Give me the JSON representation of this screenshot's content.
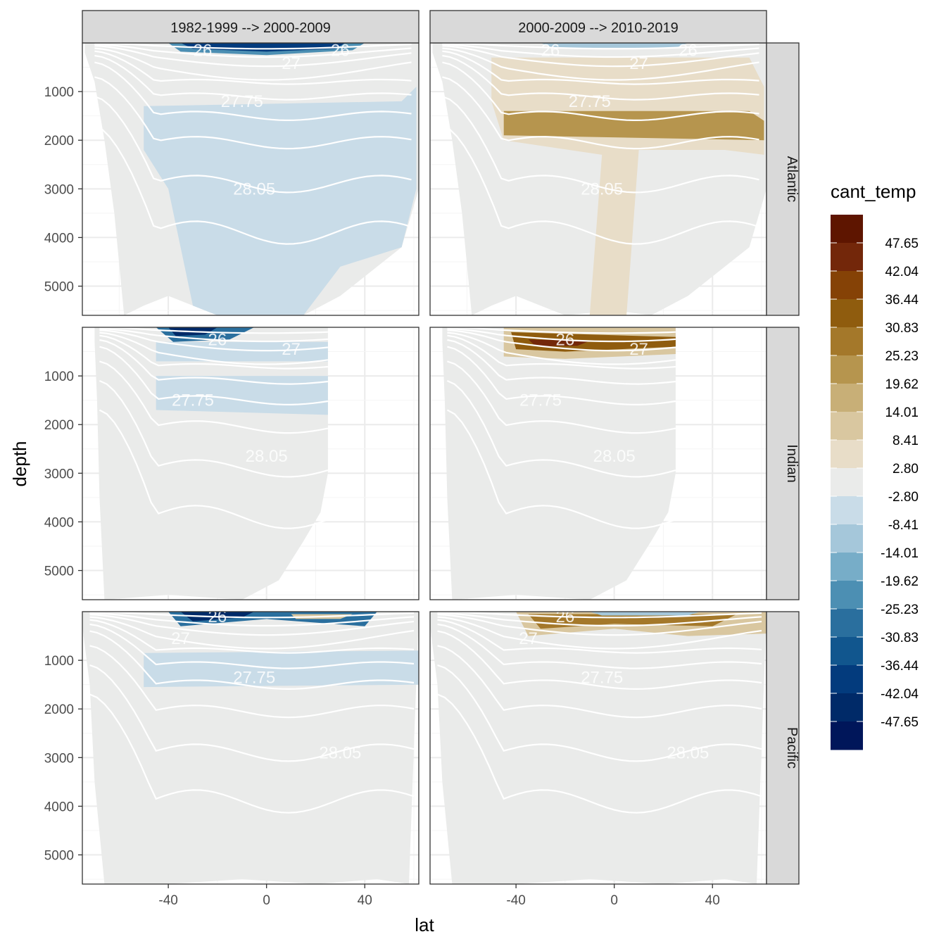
{
  "chart_data": {
    "type": "heatmap",
    "subtype": "faceted filled contour sections",
    "facet_columns": [
      "1982-1999 --> 2000-2009",
      "2000-2009 --> 2010-2019"
    ],
    "facet_rows": [
      "Atlantic",
      "Indian",
      "Pacific"
    ],
    "xlabel": "lat",
    "ylabel": "depth",
    "x_ticks": [
      -40,
      0,
      40
    ],
    "xlim": [
      -75,
      62
    ],
    "y_ticks": [
      1000,
      2000,
      3000,
      4000,
      5000
    ],
    "ylim": [
      5600,
      0
    ],
    "y_reversed": true,
    "legend": {
      "title": "cant_temp",
      "position": "right",
      "labels": [
        "47.65",
        "42.04",
        "36.44",
        "30.83",
        "25.23",
        "19.62",
        "14.01",
        "8.41",
        "2.80",
        "-2.80",
        "-8.41",
        "-14.01",
        "-19.62",
        "-25.23",
        "-30.83",
        "-36.44",
        "-42.04",
        "-47.65"
      ],
      "colors": [
        "#5e1500",
        "#73270a",
        "#854206",
        "#8f5c0e",
        "#a4782a",
        "#b6954e",
        "#c8af77",
        "#d9c7a0",
        "#e8ddc8",
        "#eaebea",
        "#c9dce8",
        "#a5c7da",
        "#77adc8",
        "#4c8fb3",
        "#2a6f9e",
        "#11568e",
        "#033b7d",
        "#002a68",
        "#00165a"
      ]
    },
    "contour_labels": [
      "26",
      "27",
      "27.75",
      "28.05"
    ],
    "contour_levels": [
      26,
      26.5,
      27,
      27.25,
      27.5,
      27.75,
      27.85,
      27.95,
      28.05,
      28.1
    ],
    "panels": [
      {
        "row": "Atlantic",
        "col": "1982-1999 --> 2000-2009",
        "dominant_fill": "-2.80 to 2.80",
        "anomaly": "negative (-2.80 to -8.41) between 1200 and 5600 m north of 50S; strong negative (to -47.65) in upper 300 m",
        "labels": [
          "26",
          "26",
          "27",
          "27.75",
          "28.05"
        ]
      },
      {
        "row": "Atlantic",
        "col": "2000-2009 --> 2010-2019",
        "dominant_fill": "-2.80 to 2.80",
        "anomaly": "positive (8.41 to 19.62) band near 1400-1900 m from 45S to 60N",
        "labels": [
          "26",
          "26",
          "27",
          "27.75",
          "28.05"
        ]
      },
      {
        "row": "Indian",
        "col": "1982-1999 --> 2000-2009",
        "dominant_fill": "-2.80 to 2.80",
        "anomaly": "strong negative at surface 45S-20S; negative bands near 400-700 m and 1000-1800 m",
        "labels": [
          "26",
          "27",
          "27.75",
          "28.05"
        ]
      },
      {
        "row": "Indian",
        "col": "2000-2009 --> 2010-2019",
        "dominant_fill": "-2.80 to 2.80",
        "anomaly": "strong positive at 200-600 m between 45S and 25N",
        "labels": [
          "26",
          "27",
          "27.75",
          "28.05"
        ]
      },
      {
        "row": "Pacific",
        "col": "1982-1999 --> 2000-2009",
        "dominant_fill": "-2.80 to 2.80",
        "anomaly": "strong negative at surface in subtropics; negative band 900-1500 m",
        "labels": [
          "26",
          "27",
          "27.75",
          "28.05"
        ]
      },
      {
        "row": "Pacific",
        "col": "2000-2009 --> 2010-2019",
        "dominant_fill": "-2.80 to 2.80",
        "anomaly": "positive at 100-500 m across basin",
        "labels": [
          "26",
          "27",
          "27.75",
          "28.05"
        ]
      }
    ]
  }
}
